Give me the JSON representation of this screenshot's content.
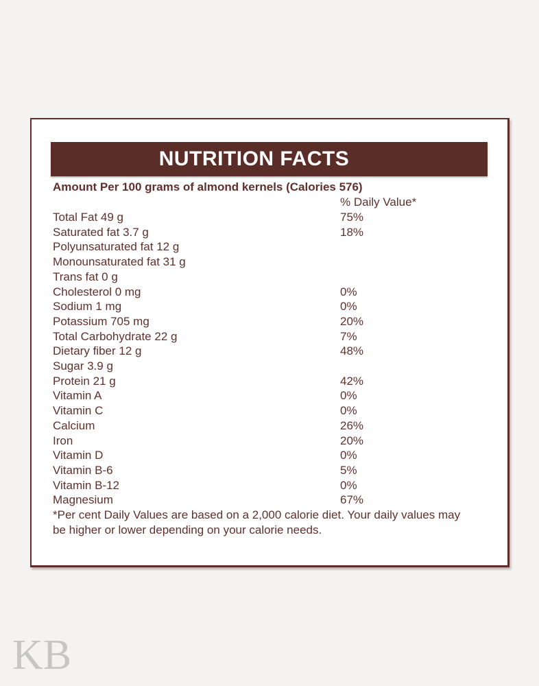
{
  "watermark": "KB",
  "label": {
    "title": "NUTRITION FACTS",
    "amount_line": "Amount Per 100 grams of almond kernels (Calories 576)",
    "daily_value_header": "% Daily Value*",
    "rows": [
      {
        "name": "Total Fat 49 g",
        "dv": "75%"
      },
      {
        "name": "Saturated fat 3.7 g",
        "dv": "18%"
      },
      {
        "name": "Polyunsaturated fat 12 g",
        "dv": ""
      },
      {
        "name": "Monounsaturated fat 31 g",
        "dv": ""
      },
      {
        "name": "Trans fat 0 g",
        "dv": ""
      },
      {
        "name": "Cholesterol 0 mg",
        "dv": "0%"
      },
      {
        "name": "Sodium 1 mg",
        "dv": "0%"
      },
      {
        "name": "Potassium 705 mg",
        "dv": "20%"
      },
      {
        "name": "Total Carbohydrate 22 g",
        "dv": "7%"
      },
      {
        "name": "Dietary fiber 12 g",
        "dv": "48%"
      },
      {
        "name": "Sugar 3.9 g",
        "dv": ""
      },
      {
        "name": "Protein 21 g",
        "dv": "42%"
      },
      {
        "name": "Vitamin A",
        "dv": "0%"
      },
      {
        "name": "Vitamin C",
        "dv": "0%"
      },
      {
        "name": "Calcium",
        "dv": "26%"
      },
      {
        "name": "Iron",
        "dv": "20%"
      },
      {
        "name": "Vitamin D",
        "dv": "0%"
      },
      {
        "name": "Vitamin B-6",
        "dv": "5%"
      },
      {
        "name": "Vitamin B-12",
        "dv": "0%"
      },
      {
        "name": "Magnesium",
        "dv": "67%"
      }
    ],
    "footnote": "*Per cent Daily Values are based on a 2,000 calorie diet. Your daily values may be higher or lower depending on your calorie needs.",
    "colors": {
      "header_bar": "#5b2d28",
      "text": "#60302d",
      "border": "#5c2d29",
      "page_background": "#f4f3f1",
      "box_background": "#ffffff",
      "watermark": "#c6c6c6"
    }
  }
}
